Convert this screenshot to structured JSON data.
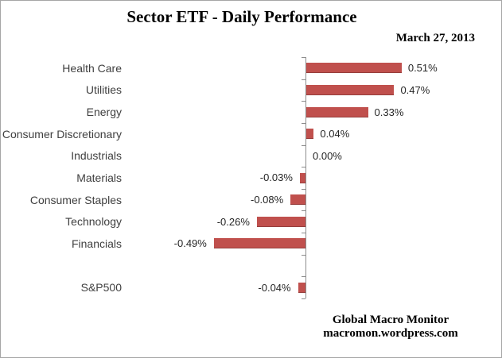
{
  "title": "Sector ETF - Daily Performance",
  "date": "March 27, 2013",
  "footer": {
    "source": "Global Macro Monitor",
    "url": "macromon.wordpress.com"
  },
  "colors": {
    "bar": "#c0504d",
    "axis": "#8c8c8c",
    "frame_border": "#a6a6a6",
    "category_text": "#3f3f3f",
    "value_text": "#262626",
    "heading_text": "#000000",
    "background": "#ffffff"
  },
  "chart_data": {
    "type": "bar",
    "orientation": "horizontal",
    "title": "Sector ETF - Daily Performance",
    "subtitle": "March 27, 2013",
    "xlabel": "",
    "ylabel": "",
    "unit": "percent",
    "xlim": [
      -0.6,
      0.6
    ],
    "grid": false,
    "legend": null,
    "value_labels_shown": true,
    "rows": [
      {
        "label": "Health Care",
        "value": 0.51,
        "display": "0.51%"
      },
      {
        "label": "Utilities",
        "value": 0.47,
        "display": "0.47%"
      },
      {
        "label": "Energy",
        "value": 0.33,
        "display": "0.33%"
      },
      {
        "label": "Consumer Discretionary",
        "value": 0.04,
        "display": "0.04%"
      },
      {
        "label": "Industrials",
        "value": 0.0,
        "display": "0.00%"
      },
      {
        "label": "Materials",
        "value": -0.03,
        "display": "-0.03%"
      },
      {
        "label": "Consumer Staples",
        "value": -0.08,
        "display": "-0.08%"
      },
      {
        "label": "Technology",
        "value": -0.26,
        "display": "-0.26%"
      },
      {
        "label": "Financials",
        "value": -0.49,
        "display": "-0.49%"
      },
      {
        "label": "",
        "value": null,
        "display": ""
      },
      {
        "label": "S&P500",
        "value": -0.04,
        "display": "-0.04%"
      }
    ]
  }
}
